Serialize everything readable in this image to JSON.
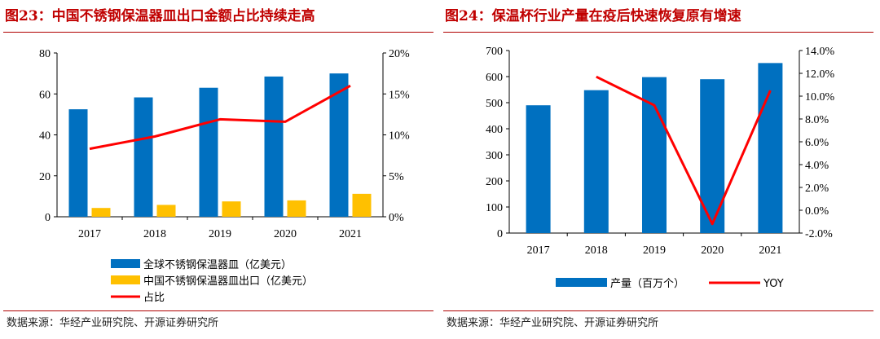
{
  "left": {
    "title": "图23：中国不锈钢保温器皿出口金额占比持续走高",
    "source": "数据来源：华经产业研究院、开源证券研究所"
  },
  "right": {
    "title": "图24：保温杯行业产量在疫后快速恢复原有增速",
    "source": "数据来源：华经产业研究院、开源证券研究所"
  },
  "chart_data": [
    {
      "type": "bar",
      "title": "图23：中国不锈钢保温器皿出口金额占比持续走高",
      "categories": [
        "2017",
        "2018",
        "2019",
        "2020",
        "2021"
      ],
      "series": [
        {
          "name": "全球不锈钢保温器皿（亿美元）",
          "type": "bar",
          "axis": "left",
          "color": "#0070c0",
          "values": [
            52.5,
            58.3,
            63.0,
            68.5,
            70.0
          ]
        },
        {
          "name": "中国不锈钢保温器皿出口（亿美元）",
          "type": "bar",
          "axis": "left",
          "color": "#ffc000",
          "values": [
            4.3,
            5.8,
            7.5,
            8.0,
            11.2
          ]
        },
        {
          "name": "占比",
          "type": "line",
          "axis": "right",
          "color": "#ff0000",
          "values": [
            8.3,
            9.8,
            11.9,
            11.6,
            16.0
          ]
        }
      ],
      "y_left": {
        "lim": [
          0,
          80
        ],
        "ticks": [
          "0",
          "20",
          "40",
          "60",
          "80"
        ]
      },
      "y_right": {
        "lim": [
          0,
          20
        ],
        "ticks": [
          "0%",
          "5%",
          "10%",
          "15%",
          "20%"
        ]
      },
      "grid": false,
      "legend_position": "bottom"
    },
    {
      "type": "bar",
      "title": "图24：保温杯行业产量在疫后快速恢复原有增速",
      "categories": [
        "2017",
        "2018",
        "2019",
        "2020",
        "2021"
      ],
      "series": [
        {
          "name": "产量（百万个）",
          "type": "bar",
          "axis": "left",
          "color": "#0070c0",
          "values": [
            490,
            548,
            598,
            590,
            652
          ]
        },
        {
          "name": "YOY",
          "type": "line",
          "axis": "right",
          "color": "#ff0000",
          "values": [
            null,
            11.7,
            9.2,
            -1.2,
            10.5
          ]
        }
      ],
      "y_left": {
        "lim": [
          0,
          700
        ],
        "ticks": [
          "0",
          "100",
          "200",
          "300",
          "400",
          "500",
          "600",
          "700"
        ]
      },
      "y_right": {
        "lim": [
          -2,
          14
        ],
        "ticks": [
          "-2.0%",
          "0.0%",
          "2.0%",
          "4.0%",
          "6.0%",
          "8.0%",
          "10.0%",
          "12.0%",
          "14.0%"
        ]
      },
      "grid": false,
      "legend_position": "bottom"
    }
  ]
}
